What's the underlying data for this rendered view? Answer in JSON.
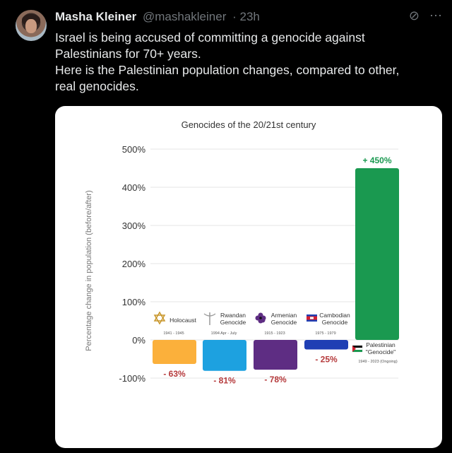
{
  "tweet": {
    "name": "Masha Kleiner",
    "handle": "@mashakleiner",
    "time": "· 23h",
    "lines": [
      "Israel is being accused of committing a genocide against",
      "Palestinians for 70+ years.",
      "Here is the Palestinian population changes, compared to other,",
      "real genocides."
    ],
    "icons": [
      "grok-icon",
      "more-icon"
    ]
  },
  "chart_data": {
    "type": "bar",
    "title": "Genocides of the 20/21st century",
    "ylabel": "Percentage change in population (before/after)",
    "ylim": [
      -100,
      500
    ],
    "yticks": [
      "500%",
      "400%",
      "300%",
      "200%",
      "100%",
      "0%",
      "-100%"
    ],
    "grid": true,
    "bars": [
      {
        "name": "Holocaust",
        "years": "1941 - 1945",
        "value": -63,
        "label": "- 63%",
        "color": "#fbb03b",
        "icon": "star-of-david-icon"
      },
      {
        "name": "Rwandan Genocide",
        "years": "1994 Apr - July",
        "value": -81,
        "label": "- 81%",
        "color": "#1da1e0",
        "icon": "caduceus-icon"
      },
      {
        "name": "Armenian Genocide",
        "years": "1915 - 1923",
        "value": -78,
        "label": "- 78%",
        "color": "#5e2d83",
        "icon": "forget-me-not-icon"
      },
      {
        "name": "Cambodian Genocide",
        "years": "1975 - 1979",
        "value": -25,
        "label": "- 25%",
        "color": "#1f3fb4",
        "icon": "cambodia-flag-icon"
      },
      {
        "name": "Palestinian \"Genocide\"",
        "years": "1949 - 2023 (Ongoing)",
        "value": 450,
        "label": "+ 450%",
        "color": "#1a9950",
        "icon": "palestine-flag-icon"
      }
    ],
    "label_color": "#b5393b"
  }
}
